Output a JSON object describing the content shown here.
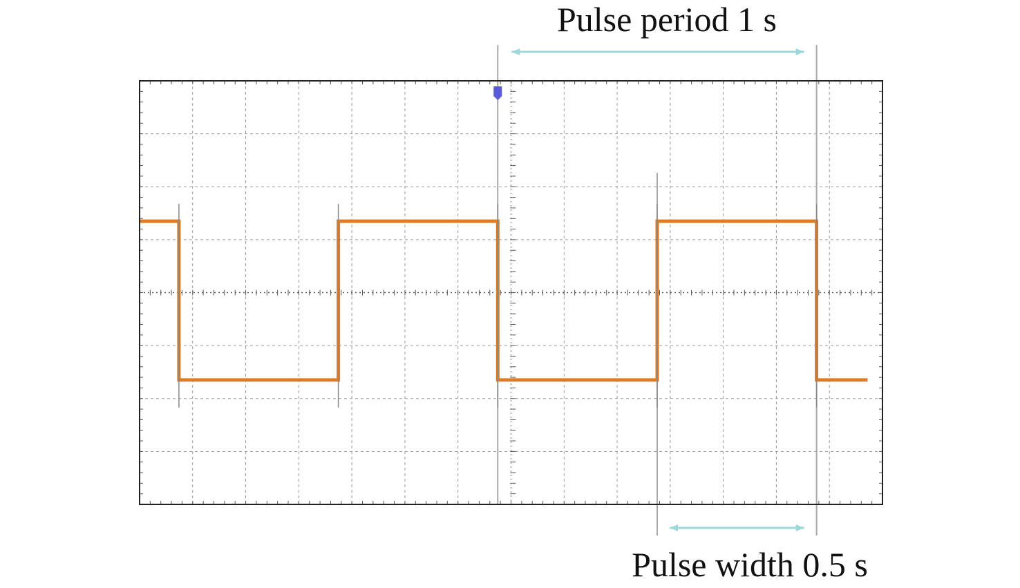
{
  "chart_data": {
    "type": "line",
    "title": "",
    "xlabel": "",
    "ylabel": "",
    "grid": true,
    "grid_divisions": {
      "x": 14,
      "y": 8
    },
    "xlim": [
      -3.37,
      3.62
    ],
    "ylim": [
      -4,
      4
    ],
    "series": [
      {
        "color": "#e07b22",
        "x": [
          -3.37,
          -3.0,
          -3.0,
          -1.5,
          -1.5,
          0.0,
          0.0,
          1.5,
          1.5,
          3.0,
          3.0,
          3.48
        ],
        "y": [
          1.35,
          1.35,
          -1.65,
          -1.65,
          1.35,
          1.35,
          -1.65,
          -1.65,
          1.35,
          1.35,
          -1.65,
          -1.65
        ]
      }
    ],
    "cursors_x": [
      0.0,
      1.5,
      3.0
    ],
    "annotations": {
      "period": {
        "text": "Pulse period 1 s",
        "from": 0.0,
        "to": 3.0
      },
      "width": {
        "text": "Pulse width 0.5 s",
        "from": 1.5,
        "to": 3.0
      }
    },
    "colors": {
      "trace": "#e07b22",
      "grid": "#9a9a9a",
      "cursor": "#a8a8a8",
      "arrow": "#9fd8d8",
      "trigger_marker": "#5b5bd6"
    }
  }
}
